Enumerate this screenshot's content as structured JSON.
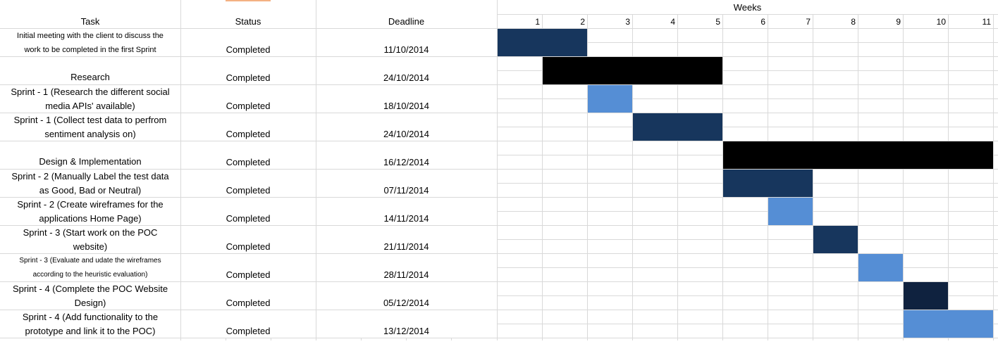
{
  "sheet": {
    "headers": {
      "task": "Task",
      "status": "Status",
      "deadline": "Deadline",
      "weeks": "Weeks"
    }
  },
  "chart_data": {
    "type": "table",
    "weeks": [
      1,
      2,
      3,
      4,
      5,
      6,
      7,
      8,
      9,
      10,
      11
    ],
    "colors": {
      "dark": "#17365d",
      "black": "#000000",
      "light": "#558ed5",
      "navy": "#0f223f"
    },
    "rows": [
      {
        "task": "Initial meeting with the client to discuss the\nwork to be completed in the first Sprint",
        "status": "Completed",
        "deadline": "11/10/2014",
        "start_week": 1,
        "end_week": 2,
        "color": "dark",
        "size": "small"
      },
      {
        "task": "Research",
        "status": "Completed",
        "deadline": "24/10/2014",
        "start_week": 2,
        "end_week": 5,
        "color": "black",
        "size": "normal"
      },
      {
        "task": "Sprint - 1 (Research the different social\nmedia APIs' available)",
        "status": "Completed",
        "deadline": "18/10/2014",
        "start_week": 3,
        "end_week": 3,
        "color": "light",
        "size": "normal"
      },
      {
        "task": "Sprint -  1 (Collect test data to perfrom\nsentiment analysis on)",
        "status": "Completed",
        "deadline": "24/10/2014",
        "start_week": 4,
        "end_week": 5,
        "color": "dark",
        "size": "normal"
      },
      {
        "task": "Design & Implementation",
        "status": "Completed",
        "deadline": "16/12/2014",
        "start_week": 6,
        "end_week": 11,
        "color": "black",
        "size": "normal"
      },
      {
        "task": "Sprint - 2 (Manually Label the test data\nas Good, Bad or Neutral)",
        "status": "Completed",
        "deadline": "07/11/2014",
        "start_week": 6,
        "end_week": 7,
        "color": "dark",
        "size": "normal"
      },
      {
        "task": "Sprint - 2 (Create wireframes for the\napplications Home Page)",
        "status": "Completed",
        "deadline": "14/11/2014",
        "start_week": 7,
        "end_week": 7,
        "color": "light",
        "size": "normal"
      },
      {
        "task": "Sprint - 3 (Start work on the POC\nwebsite)",
        "status": "Completed",
        "deadline": "21/11/2014",
        "start_week": 8,
        "end_week": 8,
        "color": "dark",
        "size": "normal"
      },
      {
        "task": "Sprint - 3 (Evaluate and udate the wireframes\naccording to the heuristic evaluation)",
        "status": "Completed",
        "deadline": "28/11/2014",
        "start_week": 9,
        "end_week": 9,
        "color": "light",
        "size": "tiny"
      },
      {
        "task": "Sprint - 4 (Complete the POC Website\nDesign)",
        "status": "Completed",
        "deadline": "05/12/2014",
        "start_week": 10,
        "end_week": 10,
        "color": "navy",
        "size": "normal"
      },
      {
        "task": "Sprint - 4 (Add functionality to the\nprototype and link it to the POC)",
        "status": "Completed",
        "deadline": "13/12/2014",
        "start_week": 10,
        "end_week": 11,
        "color": "light",
        "size": "normal"
      }
    ]
  }
}
